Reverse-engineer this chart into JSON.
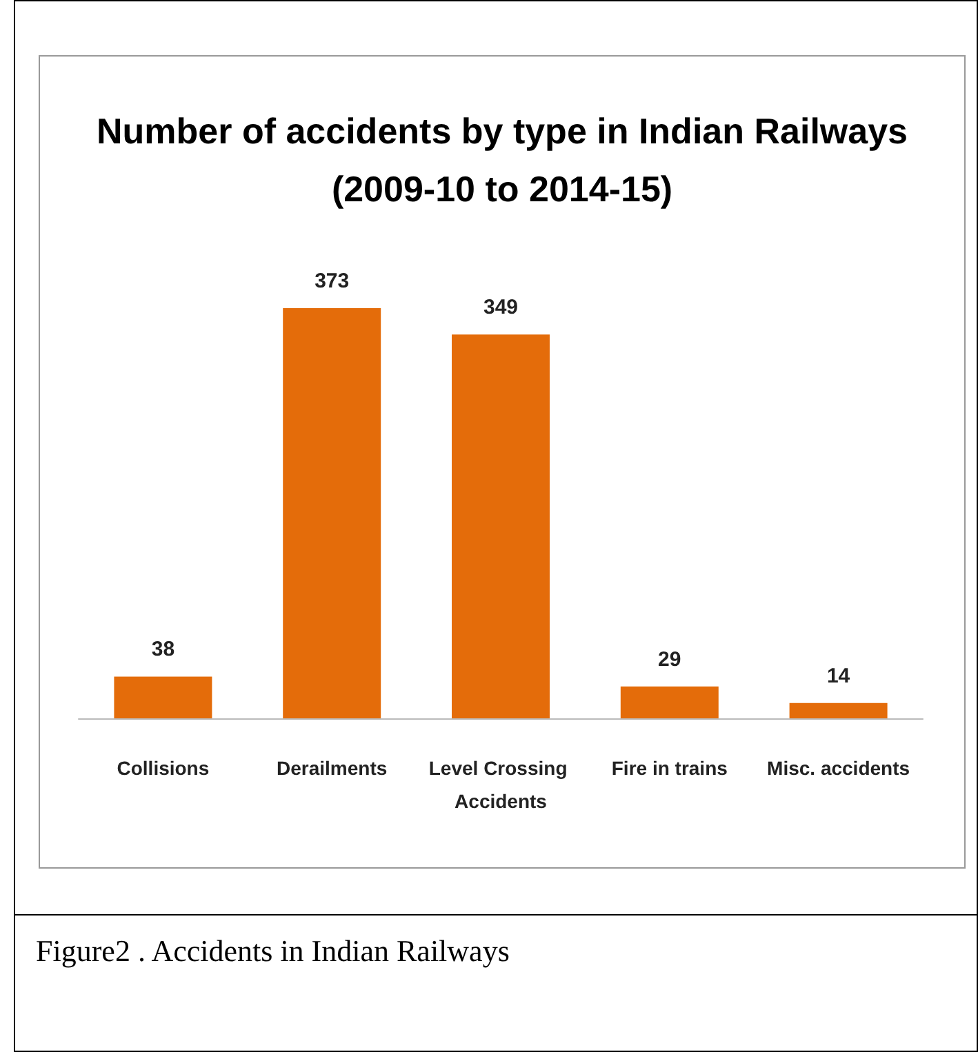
{
  "chart_data": {
    "type": "bar",
    "title": "Number of accidents by type in Indian Railways\n(2009-10 to 2014-15)",
    "categories": [
      "Collisions",
      "Derailments",
      "Level Crossing Accidents",
      "Fire in trains",
      "Misc. accidents"
    ],
    "values": [
      38,
      373,
      349,
      29,
      14
    ],
    "color": "#e46c0a",
    "data_labels": true,
    "annotations": [
      "Figure2 .  Accidents in Indian Railways"
    ]
  }
}
